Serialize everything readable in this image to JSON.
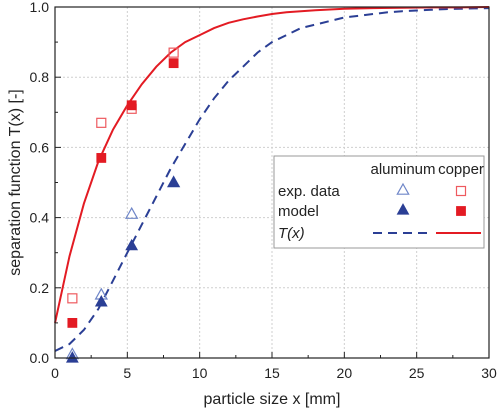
{
  "chart_data": {
    "type": "scatter",
    "title": "",
    "xlabel": "particle size x [mm]",
    "ylabel": "separation function T(x) [-]",
    "xlim": [
      0,
      30
    ],
    "ylim": [
      0,
      1.0
    ],
    "xticks": [
      "0",
      "5",
      "10",
      "15",
      "20",
      "25",
      "30"
    ],
    "yticks": [
      "0.0",
      "0.2",
      "0.4",
      "0.6",
      "0.8",
      "1.0"
    ],
    "grid": true,
    "legend_position": "center-right",
    "legend": {
      "col_headers": [
        "aluminum",
        "copper"
      ],
      "rows": [
        "exp. data",
        "model",
        "T(x)"
      ]
    },
    "colors": {
      "aluminum": "#2b3f95",
      "aluminum_open": "#6f86c8",
      "copper": "#e31b23",
      "copper_open": "#ee5a5f"
    },
    "series": [
      {
        "key": "al_exp",
        "marker": "open-triangle",
        "x": [
          1.2,
          3.2,
          5.3,
          8.2
        ],
        "y": [
          0.01,
          0.18,
          0.41,
          0.5
        ]
      },
      {
        "key": "al_model",
        "marker": "filled-triangle",
        "x": [
          1.2,
          3.2,
          5.3,
          8.2
        ],
        "y": [
          0.0,
          0.16,
          0.32,
          0.5
        ]
      },
      {
        "key": "cu_exp",
        "marker": "open-square",
        "x": [
          1.2,
          3.2,
          5.3,
          8.2
        ],
        "y": [
          0.17,
          0.67,
          0.71,
          0.87
        ]
      },
      {
        "key": "cu_model",
        "marker": "filled-square",
        "x": [
          1.2,
          3.2,
          5.3,
          8.2
        ],
        "y": [
          0.1,
          0.57,
          0.72,
          0.84
        ]
      },
      {
        "key": "al_curve",
        "line": "dashed",
        "x": [
          0,
          1,
          2,
          3,
          4,
          5,
          6,
          7,
          8,
          9,
          10,
          11,
          12,
          13,
          14,
          15,
          16,
          17,
          18,
          19,
          20,
          21,
          22,
          23,
          24,
          25,
          26,
          27,
          28,
          29,
          30
        ],
        "y": [
          0.02,
          0.04,
          0.08,
          0.14,
          0.22,
          0.3,
          0.38,
          0.46,
          0.54,
          0.61,
          0.68,
          0.74,
          0.79,
          0.83,
          0.87,
          0.9,
          0.92,
          0.94,
          0.95,
          0.96,
          0.97,
          0.975,
          0.98,
          0.985,
          0.988,
          0.99,
          0.992,
          0.994,
          0.995,
          0.996,
          0.997
        ]
      },
      {
        "key": "cu_curve",
        "line": "solid",
        "x": [
          0,
          1,
          2,
          3,
          4,
          5,
          6,
          7,
          8,
          9,
          10,
          11,
          12,
          13,
          14,
          15,
          16,
          17,
          18,
          19,
          20,
          22,
          24,
          26,
          28,
          30
        ],
        "y": [
          0.1,
          0.29,
          0.44,
          0.56,
          0.65,
          0.72,
          0.78,
          0.83,
          0.87,
          0.9,
          0.92,
          0.94,
          0.955,
          0.965,
          0.973,
          0.98,
          0.985,
          0.988,
          0.991,
          0.993,
          0.995,
          0.997,
          0.998,
          0.999,
          0.999,
          1.0
        ]
      }
    ]
  }
}
